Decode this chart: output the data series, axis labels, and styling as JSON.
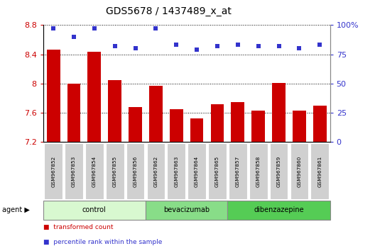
{
  "title": "GDS5678 / 1437489_x_at",
  "samples": [
    "GSM967852",
    "GSM967853",
    "GSM967854",
    "GSM967855",
    "GSM967856",
    "GSM967862",
    "GSM967863",
    "GSM967864",
    "GSM967865",
    "GSM967857",
    "GSM967858",
    "GSM967859",
    "GSM967860",
    "GSM967861"
  ],
  "bar_values": [
    8.46,
    8.0,
    8.43,
    8.05,
    7.68,
    7.97,
    7.65,
    7.52,
    7.72,
    7.74,
    7.63,
    8.01,
    7.63,
    7.7
  ],
  "dot_values": [
    97,
    90,
    97,
    82,
    80,
    97,
    83,
    79,
    82,
    83,
    82,
    82,
    80,
    83
  ],
  "bar_color": "#cc0000",
  "dot_color": "#3333cc",
  "ylim_left": [
    7.2,
    8.8
  ],
  "ylim_right": [
    0,
    100
  ],
  "yticks_left": [
    7.2,
    7.6,
    8.0,
    8.4,
    8.8
  ],
  "yticks_right": [
    0,
    25,
    50,
    75,
    100
  ],
  "groups": [
    {
      "label": "control",
      "start": 0,
      "end": 5,
      "color": "#d8f8d0"
    },
    {
      "label": "bevacizumab",
      "start": 5,
      "end": 9,
      "color": "#88dd88"
    },
    {
      "label": "dibenzazepine",
      "start": 9,
      "end": 14,
      "color": "#55cc55"
    }
  ],
  "legend_bar_label": "transformed count",
  "legend_dot_label": "percentile rank within the sample",
  "bar_color_legend": "#cc0000",
  "dot_color_legend": "#3333cc",
  "plot_bg": "#ffffff",
  "title_fontsize": 10,
  "tick_fontsize": 8,
  "bar_width": 0.65,
  "label_box_color": "#d0d0d0",
  "label_box_edge": "#aaaaaa"
}
